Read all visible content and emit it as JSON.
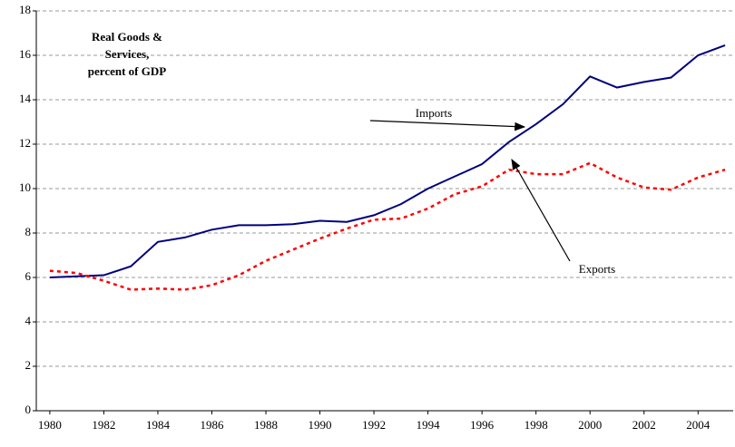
{
  "chart_data": {
    "type": "line",
    "title": [
      "Real Goods &",
      "Services,",
      "percent of GDP"
    ],
    "x": [
      1980,
      1981,
      1982,
      1983,
      1984,
      1985,
      1986,
      1987,
      1988,
      1989,
      1990,
      1991,
      1992,
      1993,
      1994,
      1995,
      1996,
      1997,
      1998,
      1999,
      2000,
      2001,
      2002,
      2003,
      2004,
      2005
    ],
    "series": [
      {
        "name": "Imports",
        "color": "#000080",
        "dash": false,
        "values": [
          6.0,
          6.05,
          6.1,
          6.5,
          7.6,
          7.8,
          8.15,
          8.35,
          8.35,
          8.4,
          8.55,
          8.5,
          8.8,
          9.3,
          10.0,
          10.55,
          11.1,
          12.1,
          12.9,
          13.8,
          15.05,
          14.55,
          14.8,
          15.0,
          16.0,
          16.45
        ]
      },
      {
        "name": "Exports",
        "color": "#ff0000",
        "dash": true,
        "values": [
          6.3,
          6.2,
          5.85,
          5.45,
          5.5,
          5.45,
          5.65,
          6.1,
          6.75,
          7.25,
          7.75,
          8.2,
          8.6,
          8.65,
          9.1,
          9.75,
          10.1,
          10.85,
          10.65,
          10.65,
          11.15,
          10.5,
          10.05,
          9.95,
          10.5,
          10.85
        ]
      }
    ],
    "xlim": [
      1979.5,
      2005.3
    ],
    "xticks": [
      1980,
      1982,
      1984,
      1986,
      1988,
      1990,
      1992,
      1994,
      1996,
      1998,
      2000,
      2002,
      2004
    ],
    "ylim": [
      0,
      18
    ],
    "yticks": [
      0,
      2,
      4,
      6,
      8,
      10,
      12,
      14,
      16,
      18
    ],
    "grid": true
  }
}
